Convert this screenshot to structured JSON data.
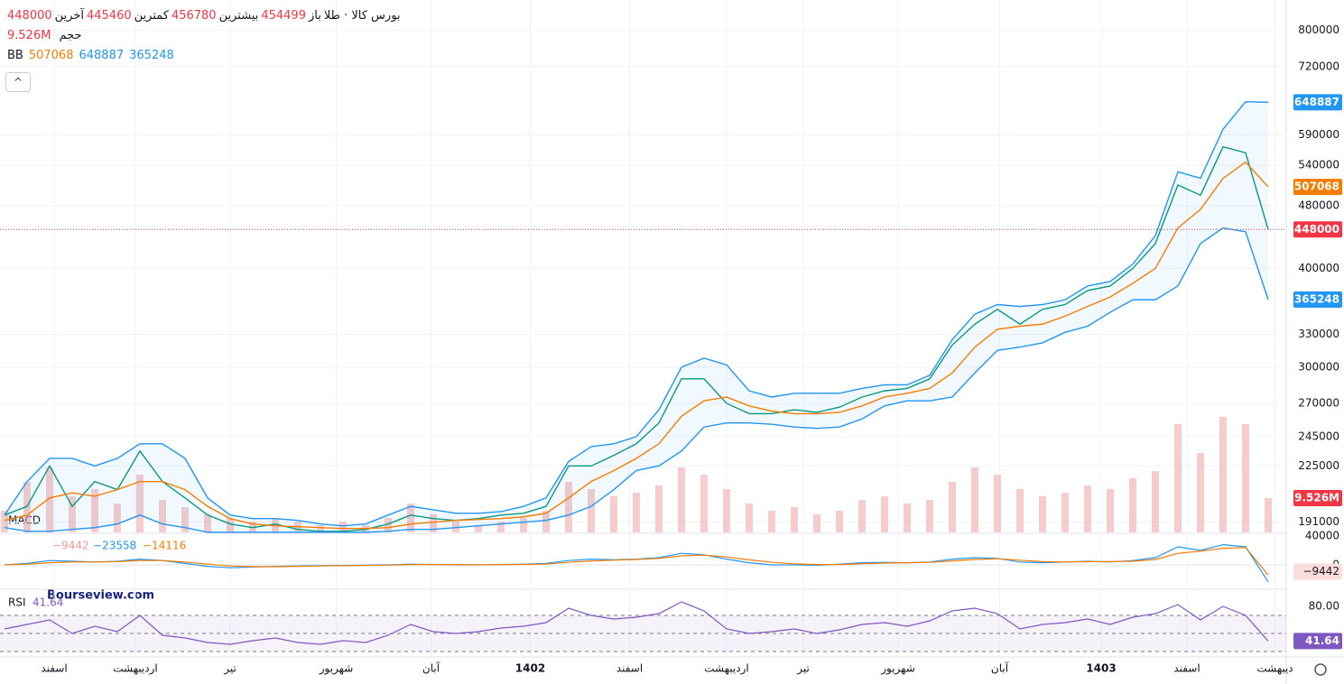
{
  "header": {
    "title": "بورس کالا · طلا",
    "open_label": "باز",
    "open": 454499,
    "high_label": "بیشترین",
    "high": 456780,
    "low_label": "کمترین",
    "low": 445460,
    "close_label": "آخرین",
    "close": 448000,
    "volume_label": "حجم",
    "volume": "9.526M",
    "bb_label": "BB",
    "bb_middle": 507068,
    "bb_upper": 648887,
    "bb_lower": 365248,
    "watermark": "Bourseview.com"
  },
  "chart_data": [
    {
      "type": "line",
      "log_scale": true,
      "ylim": [
        185400,
        874000
      ],
      "yticks": [
        191000,
        225000,
        245000,
        270000,
        300000,
        330000,
        400000,
        480000,
        540000,
        590000,
        720000,
        800000
      ],
      "xlim": [
        0,
        56
      ],
      "xticks": [
        {
          "value": 2.2,
          "label": "اسفند"
        },
        {
          "value": 5.8,
          "label": "اردیبهشت"
        },
        {
          "value": 10,
          "label": "تیر"
        },
        {
          "value": 14.7,
          "label": "شهریور"
        },
        {
          "value": 18.9,
          "label": "آبان"
        },
        {
          "value": 23.3,
          "label": "1402"
        },
        {
          "value": 27.7,
          "label": "اسفند"
        },
        {
          "value": 32,
          "label": "اردیبهشت"
        },
        {
          "value": 35.4,
          "label": "تیر"
        },
        {
          "value": 39.6,
          "label": "شهریور"
        },
        {
          "value": 44.1,
          "label": "آبان"
        },
        {
          "value": 48.6,
          "label": "1403"
        },
        {
          "value": 52.4,
          "label": "اسفند"
        },
        {
          "value": 56.3,
          "label": "دیبهشت"
        }
      ],
      "series": [
        {
          "name": "price",
          "color": "#089981",
          "values": [
            195000,
            200000,
            225000,
            200000,
            215000,
            210000,
            235000,
            215000,
            205000,
            195000,
            190000,
            188000,
            190000,
            187000,
            186000,
            186000,
            187000,
            190000,
            195000,
            193000,
            192000,
            193000,
            195000,
            196000,
            200000,
            225000,
            225000,
            232000,
            240000,
            255000,
            290000,
            290000,
            270000,
            262000,
            262000,
            265000,
            263000,
            267000,
            275000,
            280000,
            282000,
            290000,
            320000,
            340000,
            355000,
            340000,
            355000,
            360000,
            375000,
            380000,
            400000,
            430000,
            510000,
            495000,
            570000,
            560000,
            448000
          ]
        },
        {
          "name": "upper",
          "color": "#2196f3",
          "values": [
            195000,
            215000,
            230000,
            230000,
            225000,
            230000,
            240000,
            240000,
            230000,
            205000,
            195000,
            193000,
            193000,
            192000,
            190000,
            189000,
            190000,
            195000,
            200000,
            198000,
            196000,
            196000,
            197000,
            200000,
            205000,
            228000,
            238000,
            240000,
            245000,
            265000,
            300000,
            308000,
            302000,
            280000,
            275000,
            278000,
            278000,
            278000,
            282000,
            285000,
            285000,
            293000,
            325000,
            350000,
            360000,
            358000,
            360000,
            365000,
            380000,
            385000,
            405000,
            440000,
            530000,
            520000,
            600000,
            650000,
            648887
          ]
        },
        {
          "name": "middle",
          "color": "#f57c00",
          "values": [
            192000,
            195000,
            205000,
            208000,
            206000,
            210000,
            215000,
            215000,
            210000,
            200000,
            193000,
            190000,
            189000,
            188500,
            188000,
            187500,
            187500,
            188000,
            190000,
            191000,
            192000,
            192500,
            193000,
            194000,
            196000,
            205000,
            215000,
            222000,
            230000,
            240000,
            260000,
            272000,
            275000,
            268000,
            264000,
            262000,
            262000,
            263000,
            268000,
            275000,
            278000,
            282000,
            295000,
            318000,
            335000,
            338000,
            340000,
            348000,
            358000,
            368000,
            383000,
            400000,
            450000,
            475000,
            520000,
            545000,
            507068
          ]
        },
        {
          "name": "lower",
          "color": "#2196f3",
          "values": [
            188000,
            186000,
            186000,
            187000,
            188000,
            190000,
            195000,
            190000,
            188000,
            185500,
            185500,
            185500,
            185500,
            185500,
            185500,
            185500,
            185500,
            186000,
            187000,
            187000,
            188000,
            189000,
            190000,
            191000,
            192000,
            195000,
            200000,
            210000,
            222000,
            225000,
            235000,
            252000,
            255000,
            255000,
            254000,
            252000,
            251000,
            252000,
            258000,
            268000,
            272000,
            272000,
            275000,
            295000,
            315000,
            318000,
            322000,
            332000,
            338000,
            352000,
            365000,
            365000,
            380000,
            430000,
            450000,
            445000,
            365248
          ]
        }
      ],
      "volume_lim": [
        0,
        40
      ],
      "volume_color": "#ef9a9a",
      "volume": [
        6,
        14,
        18,
        10,
        12,
        8,
        16,
        9,
        7,
        5,
        4,
        3,
        4,
        3,
        2,
        3,
        2,
        4,
        8,
        5,
        3,
        2,
        3,
        4,
        6,
        14,
        12,
        10,
        11,
        13,
        18,
        16,
        12,
        8,
        6,
        7,
        5,
        6,
        9,
        10,
        8,
        9,
        14,
        18,
        16,
        12,
        10,
        11,
        13,
        12,
        15,
        17,
        30,
        22,
        32,
        30,
        9.526
      ]
    },
    {
      "type": "line",
      "name": "MACD",
      "ylim": [
        -32500,
        42500
      ],
      "yticks": [
        40000,
        0
      ],
      "histogram": -9442,
      "macd_last": -23558,
      "signal_last": -14116,
      "series": [
        {
          "name": "macd",
          "color": "#2196f3",
          "values": [
            0,
            2000,
            6000,
            5000,
            4000,
            5000,
            8000,
            6000,
            2000,
            -2000,
            -4000,
            -3000,
            -2000,
            -1500,
            -1000,
            -800,
            -500,
            0,
            1000,
            500,
            0,
            0,
            500,
            1000,
            2000,
            6000,
            8000,
            7000,
            8000,
            10000,
            16000,
            14000,
            8000,
            3000,
            0,
            0,
            -500,
            1000,
            3000,
            3500,
            3000,
            4000,
            8000,
            10000,
            9000,
            4000,
            3000,
            4000,
            5000,
            4000,
            6000,
            10000,
            25000,
            20000,
            28000,
            25000,
            -23558
          ]
        },
        {
          "name": "signal",
          "color": "#f57c00",
          "values": [
            0,
            1000,
            3000,
            4000,
            4000,
            4500,
            6000,
            6000,
            4000,
            1000,
            -1500,
            -2500,
            -2500,
            -2000,
            -1500,
            -1000,
            -800,
            -400,
            300,
            500,
            300,
            200,
            300,
            600,
            1200,
            3500,
            5500,
            6500,
            7500,
            9000,
            12500,
            13500,
            11000,
            7000,
            3500,
            1500,
            500,
            500,
            1500,
            2500,
            3000,
            3500,
            5500,
            7500,
            8500,
            6500,
            4500,
            4000,
            4500,
            4500,
            5000,
            7500,
            16000,
            19000,
            23000,
            24000,
            -14116
          ]
        }
      ]
    },
    {
      "type": "line",
      "name": "RSI",
      "ylim": [
        22,
        97
      ],
      "yticks": [
        {
          "value": 80,
          "label": "80.00"
        }
      ],
      "bands": [
        70,
        50,
        30
      ],
      "last": 41.64,
      "series": [
        {
          "name": "rsi",
          "color": "#7e57c2",
          "values": [
            55,
            60,
            65,
            50,
            58,
            52,
            70,
            48,
            45,
            40,
            38,
            42,
            45,
            40,
            38,
            42,
            40,
            48,
            60,
            52,
            50,
            52,
            56,
            58,
            62,
            78,
            70,
            66,
            68,
            72,
            85,
            75,
            55,
            50,
            52,
            55,
            50,
            54,
            60,
            62,
            58,
            64,
            75,
            78,
            72,
            55,
            60,
            62,
            66,
            60,
            68,
            72,
            82,
            65,
            80,
            70,
            41.64
          ]
        }
      ]
    }
  ]
}
